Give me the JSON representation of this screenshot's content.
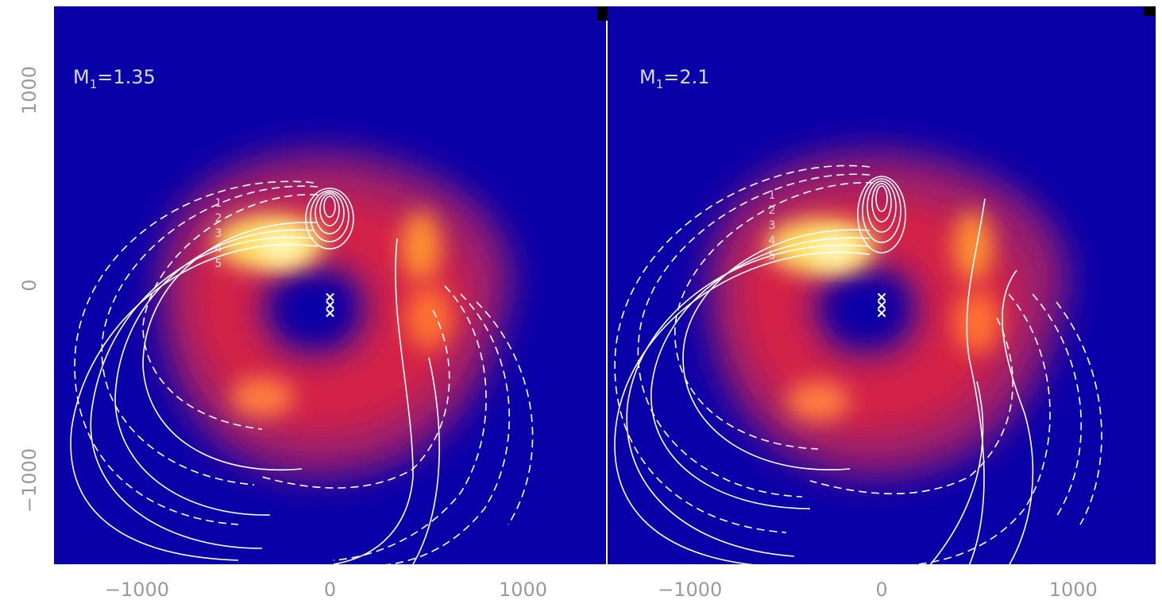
{
  "chart_data": [
    {
      "type": "heatmap",
      "panel_label": "M",
      "panel_label_sub": "1",
      "panel_label_value": "=1.35",
      "xlim": [
        -1430,
        1430
      ],
      "ylim": [
        -1430,
        1430
      ],
      "xticks": [
        {
          "value": -1000,
          "label": "−1000"
        },
        {
          "value": 0,
          "label": "0"
        },
        {
          "value": 1000,
          "label": "1000"
        }
      ],
      "yticks": [
        {
          "value": -1000,
          "label": "−1000"
        },
        {
          "value": 0,
          "label": "0"
        },
        {
          "value": 1000,
          "label": "1000"
        }
      ],
      "background_color": "#0a00a8",
      "line_color": "#ffffff",
      "arc_labels": [
        "1",
        "2",
        "3",
        "4",
        "5"
      ],
      "markers": [
        {
          "x": 0,
          "y": -60,
          "symbol": "×"
        },
        {
          "x": 0,
          "y": -100,
          "symbol": "×"
        },
        {
          "x": 0,
          "y": -140,
          "symbol": "×"
        }
      ]
    },
    {
      "type": "heatmap",
      "panel_label": "M",
      "panel_label_sub": "1",
      "panel_label_value": "=2.1",
      "xlim": [
        -1430,
        1430
      ],
      "ylim": [
        -1430,
        1430
      ],
      "xticks": [
        {
          "value": -1000,
          "label": "−1000"
        },
        {
          "value": 0,
          "label": "0"
        },
        {
          "value": 1000,
          "label": "1000"
        }
      ],
      "background_color": "#0a00a8",
      "line_color": "#ffffff",
      "arc_labels": [
        "1",
        "2",
        "3",
        "4",
        "5"
      ],
      "markers": [
        {
          "x": 0,
          "y": -60,
          "symbol": "×"
        },
        {
          "x": 0,
          "y": -100,
          "symbol": "×"
        },
        {
          "x": 0,
          "y": -140,
          "symbol": "×"
        }
      ]
    }
  ]
}
